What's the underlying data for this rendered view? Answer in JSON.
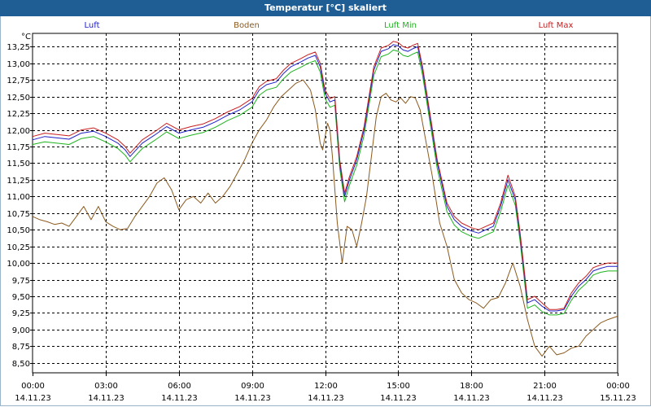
{
  "window": {
    "title": "Temperatur [°C] skaliert"
  },
  "chart_data": {
    "type": "line",
    "title": "Temperatur [°C] skaliert",
    "ylabel": "°C",
    "xlabel": "",
    "ylim": [
      8.35,
      13.45
    ],
    "xlim": [
      0,
      24
    ],
    "grid": true,
    "legend": "top",
    "y_ticks": [
      "13,25",
      "13,00",
      "12,75",
      "12,50",
      "12,25",
      "12,00",
      "11,75",
      "11,50",
      "11,25",
      "11,00",
      "10,75",
      "10,50",
      "10,25",
      "10,00",
      "9,75",
      "9,50",
      "9,25",
      "9,00",
      "8,75",
      "8,50"
    ],
    "y_tick_values": [
      13.25,
      13.0,
      12.75,
      12.5,
      12.25,
      12.0,
      11.75,
      11.5,
      11.25,
      11.0,
      10.75,
      10.5,
      10.25,
      10.0,
      9.75,
      9.5,
      9.25,
      9.0,
      8.75,
      8.5
    ],
    "x_ticks": [
      {
        "time": "00:00",
        "date": "14.11.23"
      },
      {
        "time": "03:00",
        "date": "14.11.23"
      },
      {
        "time": "06:00",
        "date": "14.11.23"
      },
      {
        "time": "09:00",
        "date": "14.11.23"
      },
      {
        "time": "12:00",
        "date": "14.11.23"
      },
      {
        "time": "15:00",
        "date": "14.11.23"
      },
      {
        "time": "18:00",
        "date": "14.11.23"
      },
      {
        "time": "21:00",
        "date": "14.11.23"
      },
      {
        "time": "00:00",
        "date": "15.11.23"
      }
    ],
    "x_tick_values": [
      0,
      3,
      6,
      9,
      12,
      15,
      18,
      21,
      24
    ],
    "series": [
      {
        "name": "Luft",
        "color": "#2020c8",
        "x": [
          0,
          0.5,
          1,
          1.5,
          2,
          2.5,
          3,
          3.5,
          3.8,
          4,
          4.5,
          5,
          5.5,
          6,
          6.5,
          7,
          7.5,
          8,
          8.5,
          9,
          9.3,
          9.6,
          10,
          10.3,
          10.6,
          11,
          11.3,
          11.6,
          11.8,
          12,
          12.2,
          12.4,
          12.6,
          12.8,
          13,
          13.3,
          13.6,
          14,
          14.3,
          14.6,
          14.8,
          15,
          15.2,
          15.4,
          15.6,
          15.8,
          16,
          16.3,
          16.6,
          17,
          17.3,
          17.6,
          18,
          18.3,
          18.6,
          18.9,
          19.2,
          19.5,
          19.8,
          20,
          20.3,
          20.6,
          20.9,
          21.2,
          21.5,
          21.8,
          22.1,
          22.4,
          22.7,
          23,
          23.3,
          23.6,
          24
        ],
        "values": [
          11.85,
          11.9,
          11.88,
          11.86,
          11.95,
          11.98,
          11.9,
          11.8,
          11.7,
          11.6,
          11.8,
          11.92,
          12.05,
          11.95,
          12.0,
          12.04,
          12.12,
          12.22,
          12.3,
          12.42,
          12.6,
          12.68,
          12.72,
          12.85,
          12.95,
          13.02,
          13.08,
          13.12,
          12.95,
          12.55,
          12.42,
          12.45,
          11.5,
          11.0,
          11.25,
          11.55,
          12.0,
          12.9,
          13.18,
          13.22,
          13.28,
          13.26,
          13.2,
          13.18,
          13.22,
          13.25,
          12.9,
          12.2,
          11.5,
          10.85,
          10.65,
          10.55,
          10.48,
          10.45,
          10.5,
          10.55,
          10.85,
          11.25,
          10.95,
          10.4,
          9.4,
          9.45,
          9.35,
          9.28,
          9.28,
          9.3,
          9.5,
          9.65,
          9.75,
          9.88,
          9.92,
          9.95,
          9.95
        ]
      },
      {
        "name": "Boden",
        "color": "#8b5a1e",
        "x": [
          0,
          0.3,
          0.6,
          0.9,
          1.2,
          1.5,
          1.8,
          2.1,
          2.4,
          2.7,
          3,
          3.3,
          3.6,
          3.9,
          4.2,
          4.5,
          4.8,
          5.1,
          5.4,
          5.7,
          6,
          6.3,
          6.6,
          6.9,
          7.2,
          7.5,
          7.8,
          8.1,
          8.4,
          8.7,
          9,
          9.3,
          9.6,
          9.9,
          10.2,
          10.5,
          10.8,
          11.1,
          11.4,
          11.6,
          11.8,
          11.9,
          12,
          12.1,
          12.2,
          12.3,
          12.5,
          12.7,
          12.9,
          13.1,
          13.3,
          13.5,
          13.7,
          13.9,
          14.1,
          14.3,
          14.5,
          14.7,
          14.9,
          15.1,
          15.3,
          15.5,
          15.7,
          15.9,
          16.1,
          16.4,
          16.7,
          17,
          17.3,
          17.6,
          17.9,
          18.2,
          18.5,
          18.8,
          19.1,
          19.4,
          19.7,
          20,
          20.3,
          20.6,
          20.9,
          21.2,
          21.5,
          21.8,
          22.1,
          22.4,
          22.7,
          23,
          23.3,
          23.6,
          24
        ],
        "values": [
          10.7,
          10.65,
          10.62,
          10.58,
          10.6,
          10.55,
          10.7,
          10.85,
          10.65,
          10.85,
          10.62,
          10.55,
          10.5,
          10.52,
          10.7,
          10.85,
          11.0,
          11.2,
          11.28,
          11.1,
          10.8,
          10.95,
          11.0,
          10.9,
          11.05,
          10.9,
          11.0,
          11.15,
          11.35,
          11.55,
          11.8,
          12.0,
          12.15,
          12.35,
          12.5,
          12.6,
          12.7,
          12.75,
          12.6,
          12.3,
          11.8,
          11.7,
          11.9,
          12.1,
          12.0,
          11.6,
          10.6,
          10.0,
          10.55,
          10.5,
          10.25,
          10.6,
          11.0,
          11.6,
          12.2,
          12.5,
          12.55,
          12.45,
          12.42,
          12.48,
          12.4,
          12.5,
          12.48,
          12.3,
          11.9,
          11.3,
          10.6,
          10.25,
          9.75,
          9.55,
          9.45,
          9.4,
          9.32,
          9.45,
          9.48,
          9.7,
          10.0,
          9.65,
          9.15,
          8.75,
          8.6,
          8.75,
          8.62,
          8.65,
          8.72,
          8.75,
          8.9,
          9.0,
          9.1,
          9.15,
          9.2
        ]
      },
      {
        "name": "Luft Min",
        "color": "#1db41d",
        "x": [
          0,
          0.5,
          1,
          1.5,
          2,
          2.5,
          3,
          3.5,
          3.8,
          4,
          4.5,
          5,
          5.5,
          6,
          6.5,
          7,
          7.5,
          8,
          8.5,
          9,
          9.3,
          9.6,
          10,
          10.3,
          10.6,
          11,
          11.3,
          11.6,
          11.8,
          12,
          12.2,
          12.4,
          12.6,
          12.8,
          13,
          13.3,
          13.6,
          14,
          14.3,
          14.6,
          14.8,
          15,
          15.2,
          15.4,
          15.6,
          15.8,
          16,
          16.3,
          16.6,
          17,
          17.3,
          17.6,
          18,
          18.3,
          18.6,
          18.9,
          19.2,
          19.5,
          19.8,
          20,
          20.3,
          20.6,
          20.9,
          21.2,
          21.5,
          21.8,
          22.1,
          22.4,
          22.7,
          23,
          23.3,
          23.6,
          24
        ],
        "values": [
          11.78,
          11.82,
          11.8,
          11.78,
          11.87,
          11.9,
          11.82,
          11.72,
          11.62,
          11.52,
          11.72,
          11.84,
          11.97,
          11.87,
          11.92,
          11.96,
          12.04,
          12.14,
          12.22,
          12.34,
          12.52,
          12.6,
          12.64,
          12.77,
          12.87,
          12.94,
          13.0,
          13.04,
          12.87,
          12.47,
          12.34,
          12.37,
          11.42,
          10.92,
          11.17,
          11.47,
          11.92,
          12.82,
          13.1,
          13.14,
          13.2,
          13.18,
          13.12,
          13.1,
          13.14,
          13.17,
          12.82,
          12.12,
          11.42,
          10.77,
          10.57,
          10.47,
          10.4,
          10.37,
          10.42,
          10.47,
          10.77,
          11.17,
          10.87,
          10.32,
          9.32,
          9.37,
          9.27,
          9.22,
          9.22,
          9.24,
          9.44,
          9.59,
          9.69,
          9.82,
          9.86,
          9.88,
          9.88
        ]
      },
      {
        "name": "Luft Max",
        "color": "#c81e1e",
        "x": [
          0,
          0.5,
          1,
          1.5,
          2,
          2.5,
          3,
          3.5,
          3.8,
          4,
          4.5,
          5,
          5.5,
          6,
          6.5,
          7,
          7.5,
          8,
          8.5,
          9,
          9.3,
          9.6,
          10,
          10.3,
          10.6,
          11,
          11.3,
          11.6,
          11.8,
          12,
          12.2,
          12.4,
          12.6,
          12.8,
          13,
          13.3,
          13.6,
          14,
          14.3,
          14.6,
          14.8,
          15,
          15.2,
          15.4,
          15.6,
          15.8,
          16,
          16.3,
          16.6,
          17,
          17.3,
          17.6,
          18,
          18.3,
          18.6,
          18.9,
          19.2,
          19.5,
          19.8,
          20,
          20.3,
          20.6,
          20.9,
          21.2,
          21.5,
          21.8,
          22.1,
          22.4,
          22.7,
          23,
          23.3,
          23.6,
          24
        ],
        "values": [
          11.9,
          11.95,
          11.93,
          11.91,
          12.0,
          12.03,
          11.95,
          11.85,
          11.75,
          11.65,
          11.85,
          11.97,
          12.1,
          12.0,
          12.05,
          12.09,
          12.17,
          12.27,
          12.35,
          12.47,
          12.65,
          12.73,
          12.77,
          12.9,
          13.0,
          13.07,
          13.13,
          13.17,
          13.0,
          12.6,
          12.47,
          12.5,
          11.55,
          11.05,
          11.3,
          11.6,
          12.05,
          12.95,
          13.23,
          13.27,
          13.33,
          13.31,
          13.25,
          13.23,
          13.27,
          13.3,
          12.95,
          12.25,
          11.55,
          10.9,
          10.7,
          10.6,
          10.53,
          10.5,
          10.55,
          10.6,
          10.9,
          11.32,
          11.0,
          10.45,
          9.45,
          9.5,
          9.4,
          9.3,
          9.3,
          9.32,
          9.55,
          9.7,
          9.8,
          9.93,
          9.97,
          10.0,
          10.0
        ]
      }
    ]
  }
}
